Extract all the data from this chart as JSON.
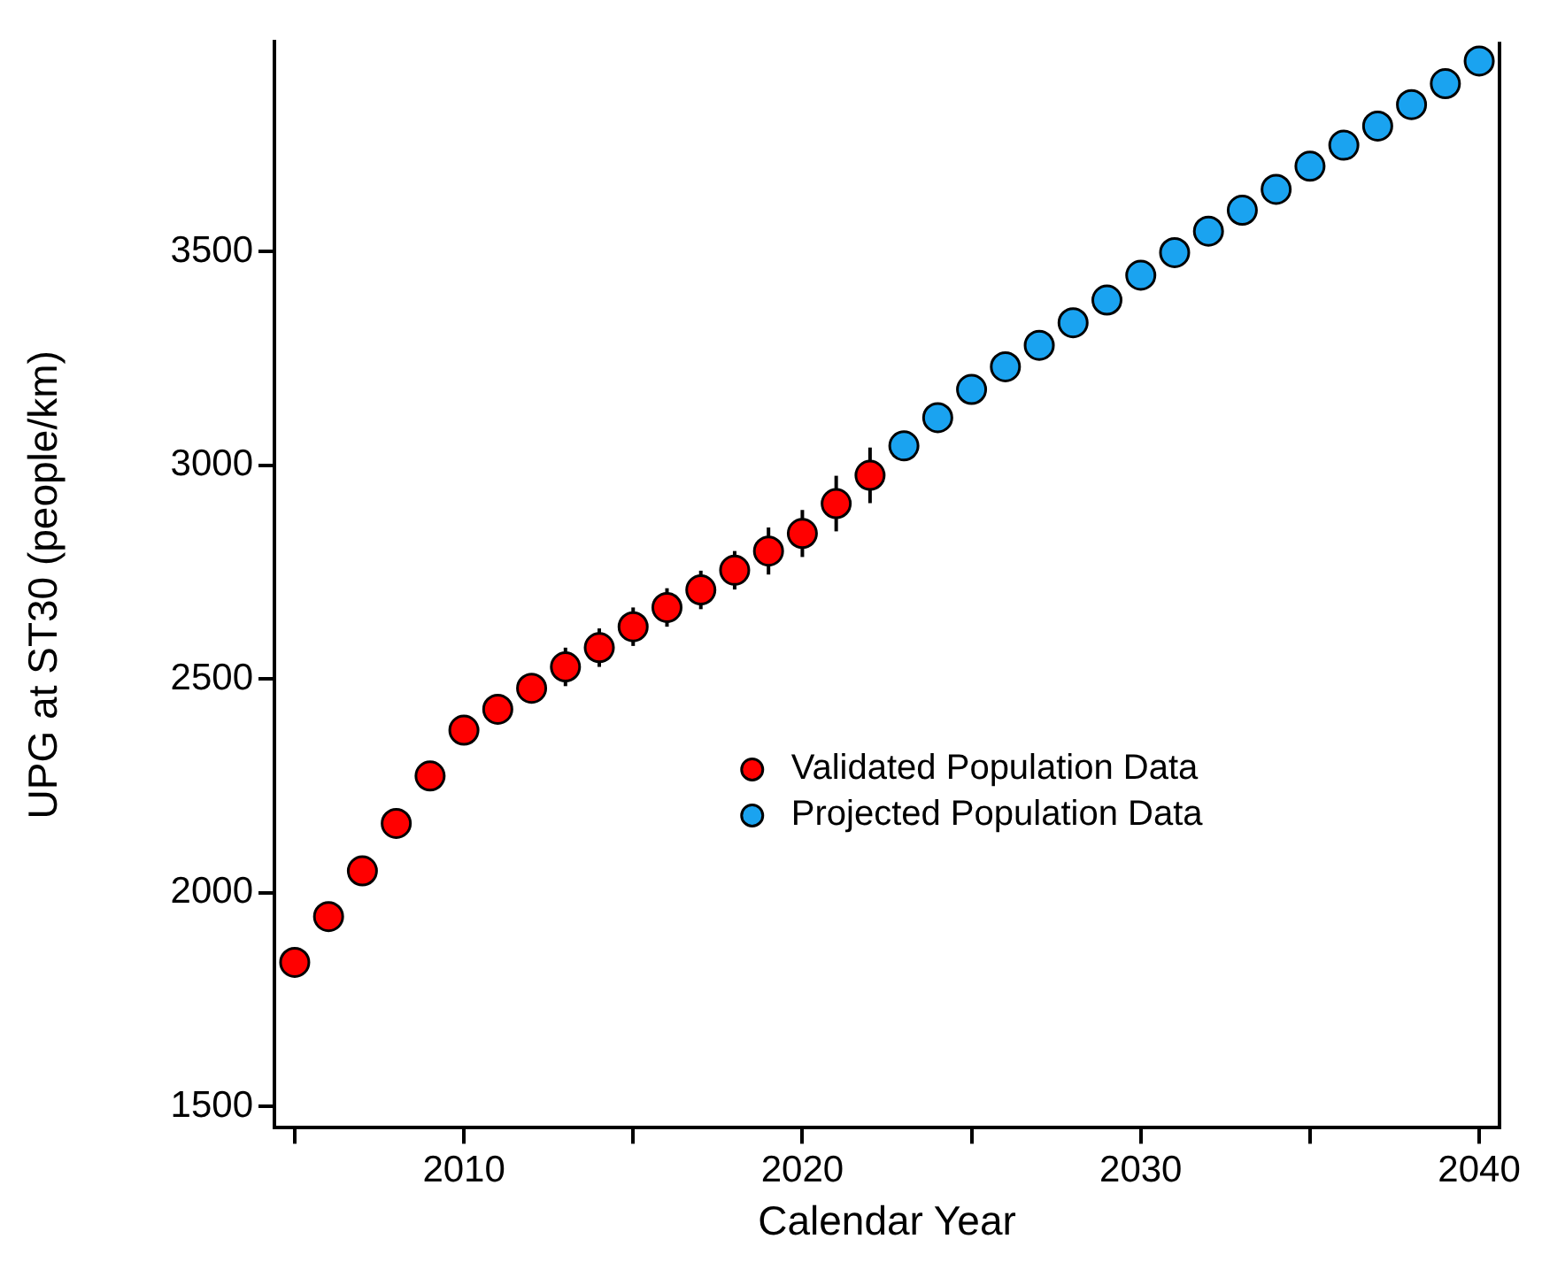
{
  "chart_data": {
    "type": "scatter",
    "xlabel": "Calendar Year",
    "ylabel": "UPG at ST30 (people/km)",
    "xlim": [
      2004.4,
      2040.6
    ],
    "ylim": [
      1450,
      3990
    ],
    "xticks": [
      {
        "value": 2005,
        "label": null
      },
      2010,
      {
        "value": 2015,
        "label": null
      },
      2020,
      {
        "value": 2025,
        "label": null
      },
      2030,
      {
        "value": 2035,
        "label": null
      },
      2040
    ],
    "yticks": [
      1500,
      2000,
      2500,
      3000,
      3500
    ],
    "grid": false,
    "legend": "right",
    "marker": "circle",
    "series": [
      {
        "name": "Validated Population Data",
        "color": "#ff0000",
        "x": [
          2005,
          2006,
          2007,
          2008,
          2009,
          2010,
          2011,
          2012,
          2013,
          2014,
          2015,
          2016,
          2017,
          2018,
          2019,
          2020,
          2021,
          2022
        ],
        "values": [
          1837,
          1944,
          2051,
          2162,
          2273,
          2380,
          2429,
          2478,
          2528,
          2573,
          2622,
          2667,
          2708,
          2754,
          2799,
          2840,
          2910,
          2976
        ],
        "errors": [
          null,
          null,
          null,
          null,
          null,
          30,
          30,
          30,
          45,
          45,
          45,
          45,
          45,
          45,
          55,
          55,
          65,
          65
        ]
      },
      {
        "name": "Projected Population Data",
        "color": "#1aa3f0",
        "x": [
          2023,
          2024,
          2025,
          2026,
          2027,
          2028,
          2029,
          2030,
          2031,
          2032,
          2033,
          2034,
          2035,
          2036,
          2037,
          2038,
          2039,
          2040
        ],
        "values": [
          3045,
          3111,
          3177,
          3230,
          3280,
          3333,
          3386,
          3444,
          3497,
          3547,
          3596,
          3645,
          3699,
          3748,
          3793,
          3843,
          3892,
          3945
        ]
      }
    ]
  }
}
